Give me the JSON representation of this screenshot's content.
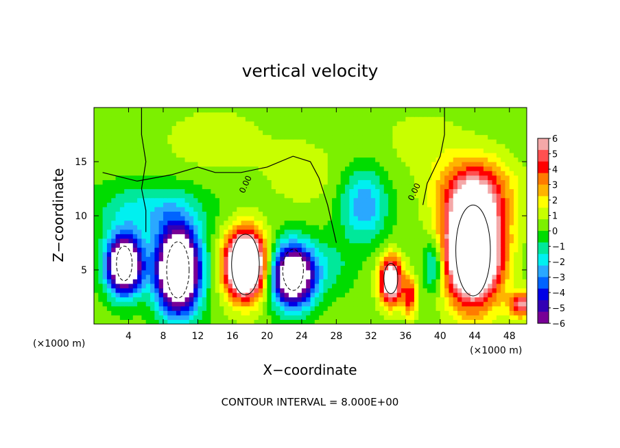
{
  "chart_data": {
    "type": "heatmap",
    "title": "vertical velocity",
    "xlabel": "X−coordinate",
    "ylabel": "Z−coordinate",
    "x_unit_note": "(×1000 m)",
    "y_unit_note": "(×1000 m)",
    "footer": "CONTOUR INTERVAL = 8.000E+00",
    "xlim": [
      0,
      50
    ],
    "ylim": [
      0,
      20
    ],
    "x_ticks": [
      "4",
      "8",
      "12",
      "16",
      "20",
      "24",
      "28",
      "32",
      "36",
      "40",
      "44",
      "48"
    ],
    "y_ticks": [
      "5",
      "10",
      "15"
    ],
    "contour_labels": [
      "0.00",
      "0.00"
    ],
    "colorbar": {
      "range": [
        -6,
        6
      ],
      "ticks": [
        "6",
        "5",
        "4",
        "3",
        "2",
        "1",
        "0",
        "−1",
        "−2",
        "−3",
        "−4",
        "−5",
        "−6"
      ],
      "colors": [
        "#f4a8a8",
        "#ff5050",
        "#ff0000",
        "#ff7b00",
        "#ffb400",
        "#ffff00",
        "#c8ff00",
        "#7cf000",
        "#00dc00",
        "#00e89a",
        "#00f0f0",
        "#2aa8ff",
        "#0064ff",
        "#0000e6",
        "#3200b4",
        "#780096"
      ],
      "out_of_range_color": "#ffffff"
    },
    "features": [
      {
        "kind": "updraft",
        "x": 17.5,
        "z": 5.5,
        "peak": 8
      },
      {
        "kind": "updraft",
        "x": 44,
        "z": 7,
        "peak": 10
      },
      {
        "kind": "updraft",
        "x": 34.5,
        "z": 4,
        "peak": 6
      },
      {
        "kind": "downdraft",
        "x": 3.5,
        "z": 5.5,
        "peak": -8
      },
      {
        "kind": "downdraft",
        "x": 9.5,
        "z": 5,
        "peak": -9
      },
      {
        "kind": "downdraft",
        "x": 23,
        "z": 4.5,
        "peak": -8
      },
      {
        "kind": "downdraft",
        "x": 31,
        "z": 11,
        "peak": -3
      }
    ]
  }
}
